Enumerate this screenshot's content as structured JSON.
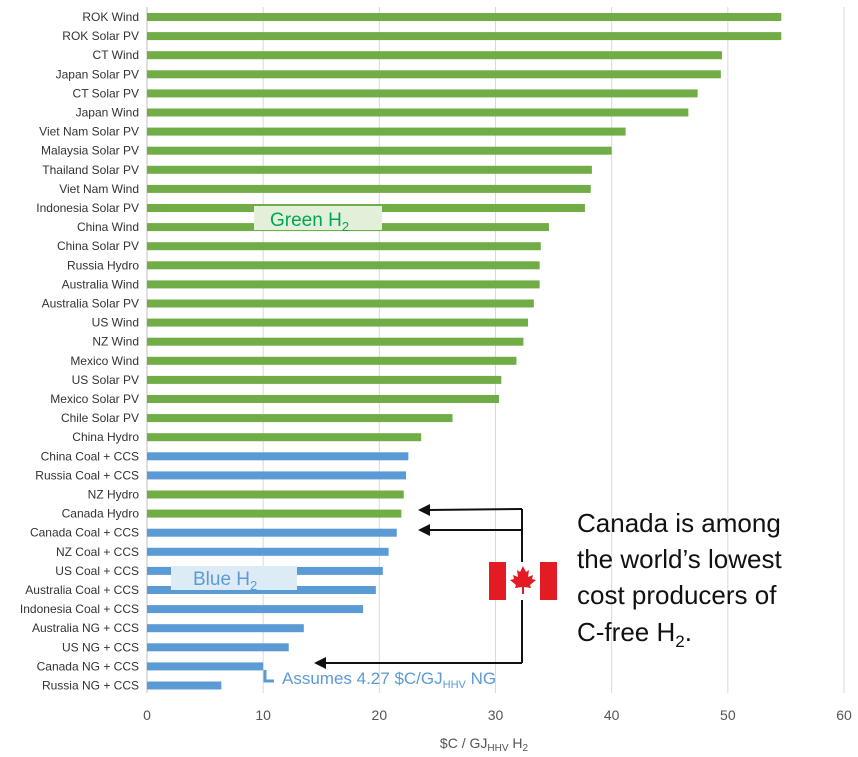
{
  "chart_data": {
    "type": "bar",
    "orientation": "horizontal",
    "categories": [
      "ROK Wind",
      "ROK Solar PV",
      "CT Wind",
      "Japan Solar PV",
      "CT Solar PV",
      "Japan Wind",
      "Viet Nam Solar PV",
      "Malaysia Solar PV",
      "Thailand Solar PV",
      "Viet Nam Wind",
      "Indonesia Solar PV",
      "China Wind",
      "China Solar PV",
      "Russia Hydro",
      "Australia Wind",
      "Australia Solar PV",
      "US Wind",
      "NZ Wind",
      "Mexico Wind",
      "US Solar PV",
      "Mexico Solar PV",
      "Chile Solar PV",
      "China Hydro",
      "China Coal + CCS",
      "Russia Coal + CCS",
      "NZ Hydro",
      "Canada Hydro",
      "Canada Coal + CCS",
      "NZ Coal + CCS",
      "US Coal + CCS",
      "Australia Coal + CCS",
      "Indonesia Coal + CCS",
      "Australia NG + CCS",
      "US NG + CCS",
      "Canada NG + CCS",
      "Russia NG + CCS"
    ],
    "values": [
      54.6,
      54.6,
      49.5,
      49.4,
      47.4,
      46.6,
      41.2,
      40.0,
      38.3,
      38.2,
      37.7,
      34.6,
      33.9,
      33.8,
      33.8,
      33.3,
      32.8,
      32.4,
      31.8,
      30.5,
      30.3,
      26.3,
      23.6,
      22.5,
      22.3,
      22.1,
      21.9,
      21.5,
      20.8,
      20.3,
      19.7,
      18.6,
      13.5,
      12.2,
      10.0,
      6.4
    ],
    "groups": [
      "green",
      "green",
      "green",
      "green",
      "green",
      "green",
      "green",
      "green",
      "green",
      "green",
      "green",
      "green",
      "green",
      "green",
      "green",
      "green",
      "green",
      "green",
      "green",
      "green",
      "green",
      "green",
      "green",
      "blue",
      "blue",
      "green",
      "green",
      "blue",
      "blue",
      "blue",
      "blue",
      "blue",
      "blue",
      "blue",
      "blue",
      "blue"
    ],
    "colors": {
      "green": "#70ad47",
      "blue": "#5b9bd5"
    },
    "xlim": [
      0,
      60
    ],
    "xticks": [
      0,
      10,
      20,
      30,
      40,
      50,
      60
    ],
    "xlabel": {
      "main": "$C / GJ",
      "sub": "HHV",
      "tail": " H",
      "sub2": "2"
    },
    "grid": true,
    "annotations": {
      "green_label": {
        "main": "Green H",
        "sub": "2"
      },
      "blue_label": {
        "main": "Blue H",
        "sub": "2"
      },
      "assumes": {
        "main": "Assumes 4.27 $C/GJ",
        "sub": "HHV",
        "tail": " NG"
      },
      "note_lines": [
        "Canada is among",
        "the world’s lowest",
        "cost producers of",
        "C-free H"
      ],
      "note_sub": "2",
      "note_tail": "."
    }
  },
  "flag": {
    "red": "#e31b23",
    "white": "#ffffff"
  }
}
